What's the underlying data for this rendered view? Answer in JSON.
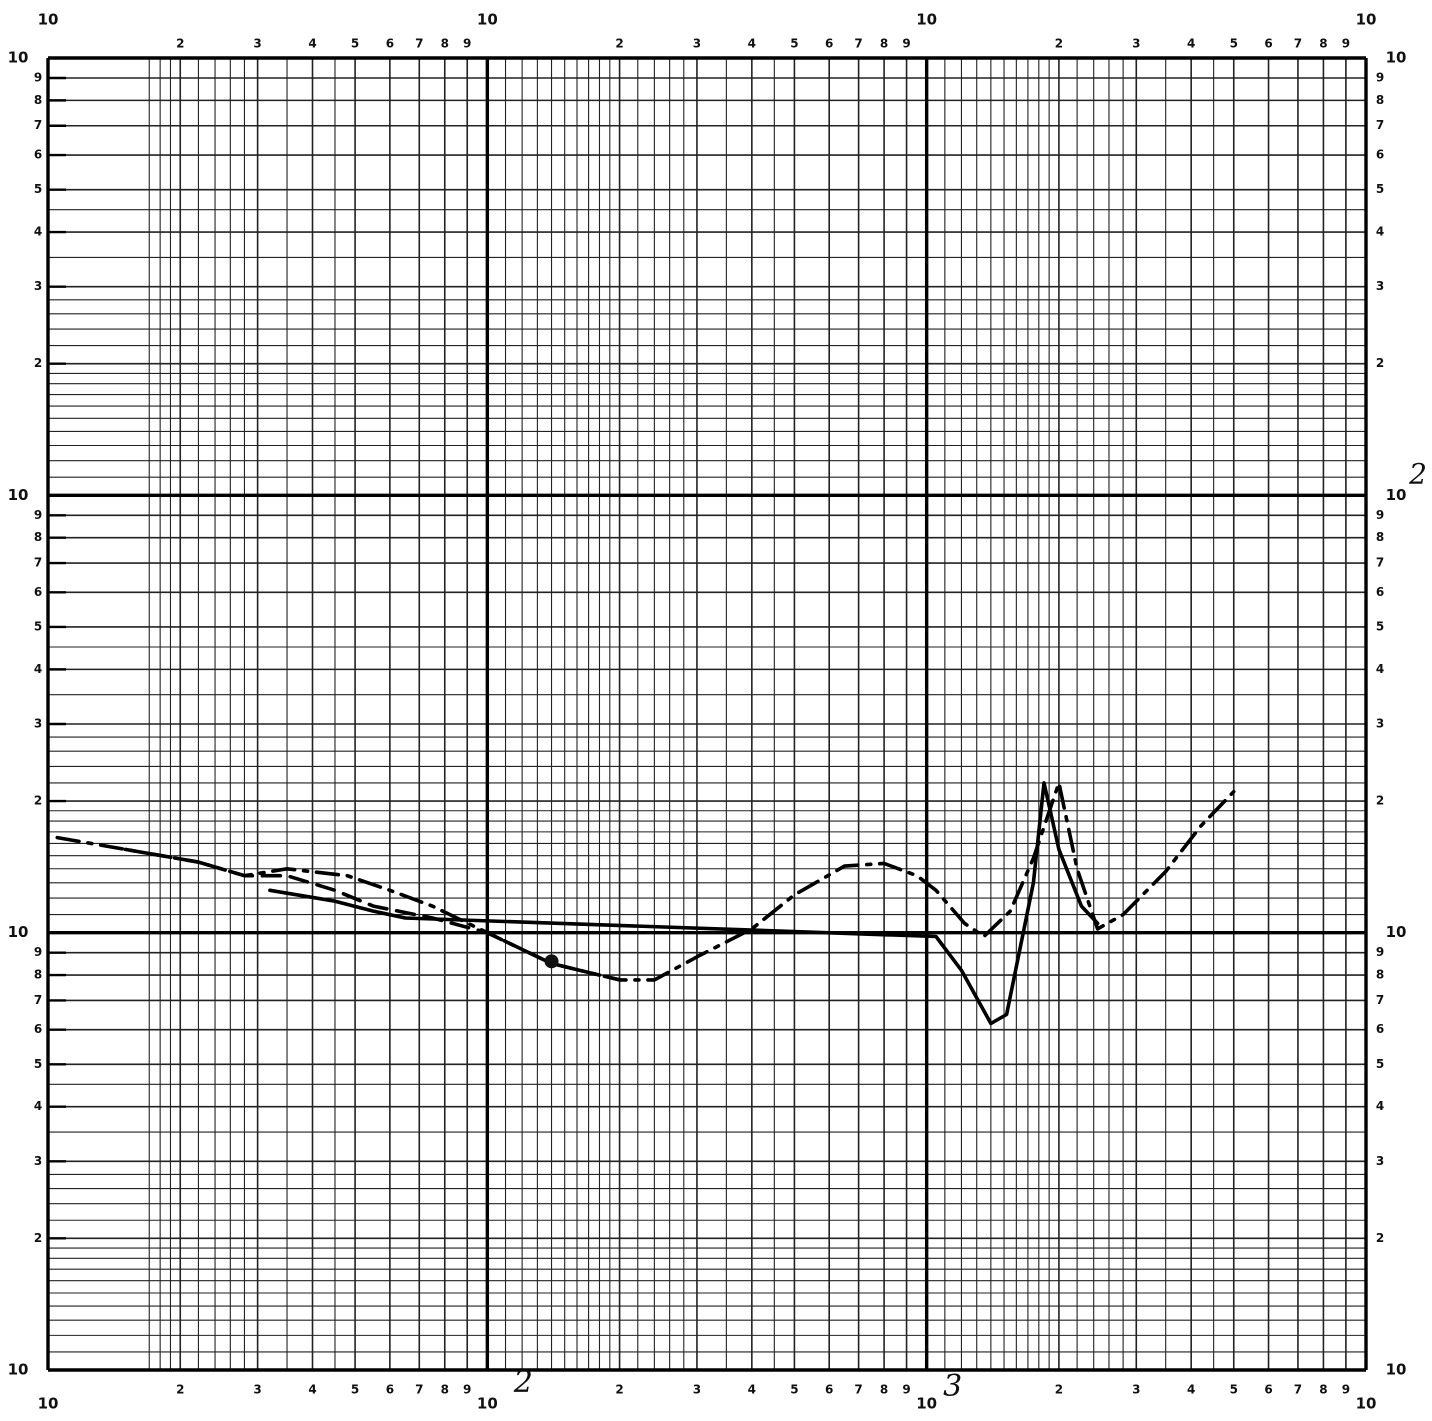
{
  "chart_data": {
    "type": "line",
    "title": "",
    "xlabel": "",
    "ylabel": "",
    "x_scale": "log",
    "y_scale": "log",
    "xlim": [
      10,
      10000
    ],
    "ylim": [
      1,
      1000
    ],
    "grid": true,
    "axis_labels": {
      "major_text": "10",
      "minor_digits": [
        "2",
        "3",
        "4",
        "5",
        "6",
        "7",
        "8",
        "9"
      ],
      "handwritten_exponents": [
        "2",
        "3"
      ],
      "handwritten_right": "2"
    },
    "series": [
      {
        "style": "dash-dot",
        "points": [
          [
            10.5,
            16.5
          ],
          [
            15,
            15.5
          ],
          [
            22,
            14.5
          ],
          [
            28,
            13.5
          ],
          [
            35,
            14
          ],
          [
            48,
            13.5
          ],
          [
            60,
            12.5
          ],
          [
            75,
            11.5
          ],
          [
            100,
            10
          ],
          [
            140,
            8.5
          ],
          [
            200,
            7.8
          ],
          [
            240,
            7.8
          ],
          [
            300,
            8.8
          ],
          [
            400,
            10.2
          ],
          [
            500,
            12.2
          ],
          [
            650,
            14.2
          ],
          [
            800,
            14.4
          ],
          [
            950,
            13.5
          ],
          [
            1050,
            12.5
          ],
          [
            1220,
            10.5
          ],
          [
            1350,
            9.8
          ],
          [
            1550,
            11.2
          ],
          [
            1750,
            14.8
          ],
          [
            2000,
            22
          ],
          [
            2200,
            14
          ],
          [
            2450,
            10.2
          ],
          [
            2800,
            11
          ],
          [
            3500,
            13.8
          ],
          [
            4200,
            17.5
          ],
          [
            5000,
            21
          ]
        ]
      },
      {
        "style": "dashed",
        "points": [
          [
            15,
            15.5
          ],
          [
            22,
            14.5
          ],
          [
            28,
            13.5
          ],
          [
            35,
            13.5
          ],
          [
            45,
            12.5
          ],
          [
            55,
            11.5
          ],
          [
            75,
            10.8
          ],
          [
            100,
            10
          ],
          [
            140,
            8.5
          ],
          [
            200,
            7.8
          ]
        ]
      },
      {
        "style": "solid",
        "points": [
          [
            32,
            12.5
          ],
          [
            45,
            11.8
          ],
          [
            55,
            11.2
          ],
          [
            65,
            10.8
          ],
          [
            1050,
            9.8
          ],
          [
            1200,
            8.2
          ],
          [
            1400,
            6.2
          ],
          [
            1520,
            6.5
          ],
          [
            1750,
            13
          ],
          [
            1850,
            22
          ],
          [
            2000,
            15.5
          ],
          [
            2250,
            11.5
          ],
          [
            2450,
            10.5
          ]
        ]
      }
    ],
    "markers": [
      {
        "x": 140,
        "y": 8.6
      }
    ]
  }
}
